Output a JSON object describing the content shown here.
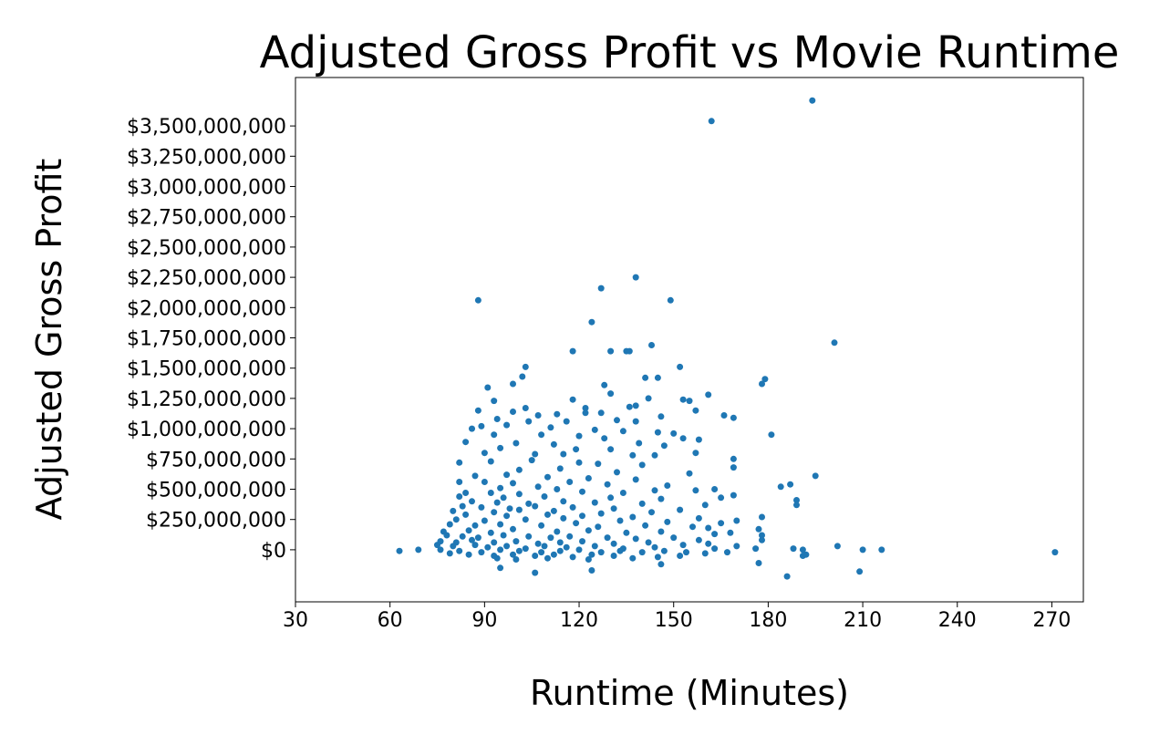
{
  "chart_data": {
    "type": "scatter",
    "title": "Adjusted Gross Profit vs Movie Runtime",
    "xlabel": "Runtime (Minutes)",
    "ylabel": "Adjusted Gross Profit",
    "xlim": [
      30,
      280
    ],
    "ylim": [
      -430000000,
      3900000000
    ],
    "x_ticks": [
      30,
      60,
      90,
      120,
      150,
      180,
      210,
      240,
      270
    ],
    "x_tick_labels": [
      "30",
      "60",
      "90",
      "120",
      "150",
      "180",
      "210",
      "240",
      "270"
    ],
    "y_ticks": [
      0,
      250000000,
      500000000,
      750000000,
      1000000000,
      1250000000,
      1500000000,
      1750000000,
      2000000000,
      2250000000,
      2500000000,
      2750000000,
      3000000000,
      3250000000,
      3500000000
    ],
    "y_tick_labels": [
      "$0",
      "$250,000,000",
      "$500,000,000",
      "$750,000,000",
      "$1,000,000,000",
      "$1,250,000,000",
      "$1,500,000,000",
      "$1,750,000,000",
      "$2,000,000,000",
      "$2,250,000,000",
      "$2,500,000,000",
      "$2,750,000,000",
      "$3,000,000,000",
      "$3,250,000,000",
      "$3,500,000,000"
    ],
    "grid": false,
    "legend": "none",
    "marker_color": "#1f77b4",
    "series": [
      {
        "points": [
          [
            194,
            3710000000
          ],
          [
            162,
            3540000000
          ],
          [
            138,
            2250000000
          ],
          [
            127,
            2160000000
          ],
          [
            88,
            2060000000
          ],
          [
            149,
            2060000000
          ],
          [
            124,
            1880000000
          ],
          [
            201,
            1710000000
          ],
          [
            143,
            1690000000
          ],
          [
            118,
            1640000000
          ],
          [
            130,
            1640000000
          ],
          [
            135,
            1640000000
          ],
          [
            136,
            1640000000
          ],
          [
            103,
            1510000000
          ],
          [
            152,
            1510000000
          ],
          [
            102,
            1430000000
          ],
          [
            141,
            1420000000
          ],
          [
            145,
            1420000000
          ],
          [
            179,
            1410000000
          ],
          [
            99,
            1370000000
          ],
          [
            128,
            1360000000
          ],
          [
            178,
            1370000000
          ],
          [
            91,
            1340000000
          ],
          [
            130,
            1290000000
          ],
          [
            161,
            1280000000
          ],
          [
            93,
            1230000000
          ],
          [
            118,
            1240000000
          ],
          [
            142,
            1250000000
          ],
          [
            153,
            1240000000
          ],
          [
            155,
            1230000000
          ],
          [
            138,
            1190000000
          ],
          [
            103,
            1170000000
          ],
          [
            88,
            1150000000
          ],
          [
            122,
            1170000000
          ],
          [
            136,
            1180000000
          ],
          [
            157,
            1150000000
          ],
          [
            166,
            1110000000
          ],
          [
            169,
            1090000000
          ],
          [
            99,
            1140000000
          ],
          [
            107,
            1110000000
          ],
          [
            113,
            1120000000
          ],
          [
            122,
            1130000000
          ],
          [
            127,
            1130000000
          ],
          [
            132,
            1070000000
          ],
          [
            146,
            1100000000
          ],
          [
            94,
            1080000000
          ],
          [
            104,
            1060000000
          ],
          [
            116,
            1060000000
          ],
          [
            138,
            1060000000
          ],
          [
            86,
            1000000000
          ],
          [
            89,
            1020000000
          ],
          [
            97,
            1030000000
          ],
          [
            111,
            1010000000
          ],
          [
            125,
            990000000
          ],
          [
            134,
            980000000
          ],
          [
            145,
            970000000
          ],
          [
            150,
            960000000
          ],
          [
            181,
            950000000
          ],
          [
            93,
            950000000
          ],
          [
            108,
            950000000
          ],
          [
            120,
            940000000
          ],
          [
            128,
            920000000
          ],
          [
            153,
            920000000
          ],
          [
            158,
            910000000
          ],
          [
            84,
            890000000
          ],
          [
            100,
            880000000
          ],
          [
            112,
            870000000
          ],
          [
            139,
            880000000
          ],
          [
            147,
            860000000
          ],
          [
            95,
            840000000
          ],
          [
            119,
            830000000
          ],
          [
            130,
            830000000
          ],
          [
            157,
            800000000
          ],
          [
            90,
            800000000
          ],
          [
            106,
            790000000
          ],
          [
            115,
            790000000
          ],
          [
            137,
            780000000
          ],
          [
            144,
            780000000
          ],
          [
            169,
            750000000
          ],
          [
            82,
            720000000
          ],
          [
            92,
            730000000
          ],
          [
            105,
            740000000
          ],
          [
            120,
            720000000
          ],
          [
            126,
            710000000
          ],
          [
            140,
            700000000
          ],
          [
            169,
            680000000
          ],
          [
            101,
            660000000
          ],
          [
            114,
            670000000
          ],
          [
            132,
            640000000
          ],
          [
            155,
            630000000
          ],
          [
            195,
            610000000
          ],
          [
            87,
            610000000
          ],
          [
            97,
            620000000
          ],
          [
            110,
            600000000
          ],
          [
            123,
            590000000
          ],
          [
            138,
            580000000
          ],
          [
            82,
            560000000
          ],
          [
            90,
            560000000
          ],
          [
            99,
            550000000
          ],
          [
            117,
            560000000
          ],
          [
            129,
            540000000
          ],
          [
            148,
            530000000
          ],
          [
            184,
            520000000
          ],
          [
            187,
            540000000
          ],
          [
            95,
            510000000
          ],
          [
            107,
            520000000
          ],
          [
            113,
            500000000
          ],
          [
            144,
            490000000
          ],
          [
            157,
            490000000
          ],
          [
            163,
            500000000
          ],
          [
            84,
            470000000
          ],
          [
            92,
            470000000
          ],
          [
            101,
            460000000
          ],
          [
            121,
            480000000
          ],
          [
            134,
            470000000
          ],
          [
            169,
            450000000
          ],
          [
            82,
            440000000
          ],
          [
            96,
            430000000
          ],
          [
            109,
            440000000
          ],
          [
            130,
            430000000
          ],
          [
            146,
            420000000
          ],
          [
            165,
            430000000
          ],
          [
            189,
            410000000
          ],
          [
            189,
            370000000
          ],
          [
            86,
            400000000
          ],
          [
            94,
            390000000
          ],
          [
            104,
            380000000
          ],
          [
            115,
            400000000
          ],
          [
            125,
            390000000
          ],
          [
            140,
            380000000
          ],
          [
            160,
            370000000
          ],
          [
            83,
            360000000
          ],
          [
            89,
            350000000
          ],
          [
            98,
            340000000
          ],
          [
            106,
            360000000
          ],
          [
            118,
            350000000
          ],
          [
            131,
            340000000
          ],
          [
            152,
            330000000
          ],
          [
            80,
            320000000
          ],
          [
            93,
            310000000
          ],
          [
            101,
            330000000
          ],
          [
            112,
            320000000
          ],
          [
            127,
            300000000
          ],
          [
            143,
            310000000
          ],
          [
            84,
            290000000
          ],
          [
            97,
            280000000
          ],
          [
            110,
            290000000
          ],
          [
            121,
            280000000
          ],
          [
            137,
            270000000
          ],
          [
            158,
            260000000
          ],
          [
            178,
            270000000
          ],
          [
            81,
            250000000
          ],
          [
            90,
            240000000
          ],
          [
            103,
            250000000
          ],
          [
            115,
            260000000
          ],
          [
            133,
            240000000
          ],
          [
            148,
            230000000
          ],
          [
            165,
            220000000
          ],
          [
            170,
            240000000
          ],
          [
            79,
            210000000
          ],
          [
            87,
            200000000
          ],
          [
            95,
            210000000
          ],
          [
            108,
            200000000
          ],
          [
            119,
            220000000
          ],
          [
            126,
            190000000
          ],
          [
            141,
            200000000
          ],
          [
            156,
            190000000
          ],
          [
            161,
            180000000
          ],
          [
            177,
            170000000
          ],
          [
            77,
            150000000
          ],
          [
            85,
            160000000
          ],
          [
            92,
            140000000
          ],
          [
            99,
            170000000
          ],
          [
            113,
            150000000
          ],
          [
            123,
            160000000
          ],
          [
            135,
            140000000
          ],
          [
            146,
            150000000
          ],
          [
            163,
            130000000
          ],
          [
            168,
            140000000
          ],
          [
            178,
            120000000
          ],
          [
            78,
            120000000
          ],
          [
            83,
            110000000
          ],
          [
            88,
            100000000
          ],
          [
            96,
            120000000
          ],
          [
            104,
            110000000
          ],
          [
            111,
            100000000
          ],
          [
            117,
            110000000
          ],
          [
            129,
            100000000
          ],
          [
            138,
            90000000
          ],
          [
            150,
            100000000
          ],
          [
            158,
            80000000
          ],
          [
            178,
            80000000
          ],
          [
            76,
            70000000
          ],
          [
            81,
            60000000
          ],
          [
            86,
            80000000
          ],
          [
            93,
            60000000
          ],
          [
            100,
            70000000
          ],
          [
            107,
            50000000
          ],
          [
            114,
            60000000
          ],
          [
            121,
            70000000
          ],
          [
            131,
            50000000
          ],
          [
            142,
            60000000
          ],
          [
            153,
            40000000
          ],
          [
            161,
            50000000
          ],
          [
            170,
            30000000
          ],
          [
            75,
            40000000
          ],
          [
            80,
            30000000
          ],
          [
            87,
            40000000
          ],
          [
            91,
            20000000
          ],
          [
            97,
            30000000
          ],
          [
            103,
            10000000
          ],
          [
            109,
            30000000
          ],
          [
            116,
            20000000
          ],
          [
            125,
            30000000
          ],
          [
            134,
            10000000
          ],
          [
            144,
            20000000
          ],
          [
            163,
            10000000
          ],
          [
            176,
            10000000
          ],
          [
            191,
            0
          ],
          [
            202,
            30000000
          ],
          [
            210,
            0
          ],
          [
            216,
            0
          ],
          [
            63,
            -10000000
          ],
          [
            69,
            0
          ],
          [
            76,
            0
          ],
          [
            82,
            -10000000
          ],
          [
            89,
            -20000000
          ],
          [
            95,
            0
          ],
          [
            101,
            -10000000
          ],
          [
            108,
            -20000000
          ],
          [
            114,
            -10000000
          ],
          [
            120,
            0
          ],
          [
            127,
            -20000000
          ],
          [
            133,
            -10000000
          ],
          [
            140,
            -20000000
          ],
          [
            147,
            -10000000
          ],
          [
            154,
            -20000000
          ],
          [
            160,
            -30000000
          ],
          [
            167,
            -20000000
          ],
          [
            188,
            10000000
          ],
          [
            191,
            -50000000
          ],
          [
            192,
            -40000000
          ],
          [
            79,
            -30000000
          ],
          [
            85,
            -40000000
          ],
          [
            93,
            -50000000
          ],
          [
            99,
            -40000000
          ],
          [
            106,
            -50000000
          ],
          [
            112,
            -40000000
          ],
          [
            118,
            -60000000
          ],
          [
            124,
            -40000000
          ],
          [
            131,
            -50000000
          ],
          [
            137,
            -70000000
          ],
          [
            145,
            -60000000
          ],
          [
            152,
            -50000000
          ],
          [
            94,
            -70000000
          ],
          [
            100,
            -80000000
          ],
          [
            110,
            -70000000
          ],
          [
            123,
            -80000000
          ],
          [
            146,
            -120000000
          ],
          [
            177,
            -110000000
          ],
          [
            95,
            -150000000
          ],
          [
            124,
            -170000000
          ],
          [
            106,
            -190000000
          ],
          [
            209,
            -180000000
          ],
          [
            186,
            -220000000
          ],
          [
            271,
            -20000000
          ]
        ]
      }
    ]
  }
}
